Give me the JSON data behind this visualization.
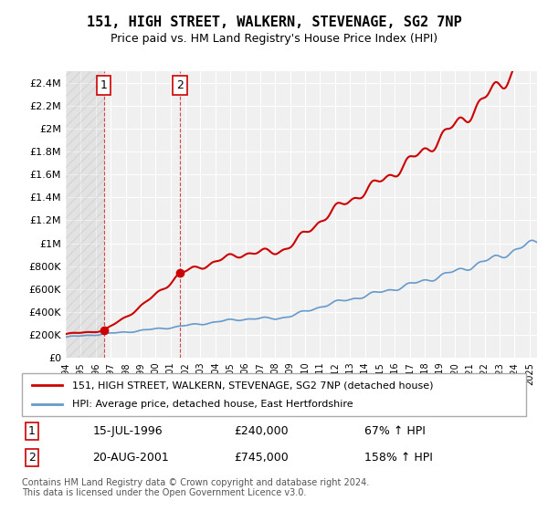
{
  "title": "151, HIGH STREET, WALKERN, STEVENAGE, SG2 7NP",
  "subtitle": "Price paid vs. HM Land Registry's House Price Index (HPI)",
  "sale1_date": "1996-07-15",
  "sale1_label": "15-JUL-1996",
  "sale1_price": 240000,
  "sale1_hpi_pct": "67% ↑ HPI",
  "sale1_marker_x": 1996.54,
  "sale2_date": "2001-08-20",
  "sale2_label": "20-AUG-2001",
  "sale2_price": 745000,
  "sale2_hpi_pct": "158% ↑ HPI",
  "sale2_marker_x": 2001.64,
  "legend_line1": "151, HIGH STREET, WALKERN, STEVENAGE, SG2 7NP (detached house)",
  "legend_line2": "HPI: Average price, detached house, East Hertfordshire",
  "footer": "Contains HM Land Registry data © Crown copyright and database right 2024.\nThis data is licensed under the Open Government Licence v3.0.",
  "price_line_color": "#cc0000",
  "hpi_line_color": "#6699cc",
  "annotation_color": "#cc0000",
  "ylim_min": 0,
  "ylim_max": 2500000,
  "xlim_min": 1994,
  "xlim_max": 2025.5,
  "background_color": "#f0f0f0",
  "plot_bg_color": "#f0f0f0"
}
